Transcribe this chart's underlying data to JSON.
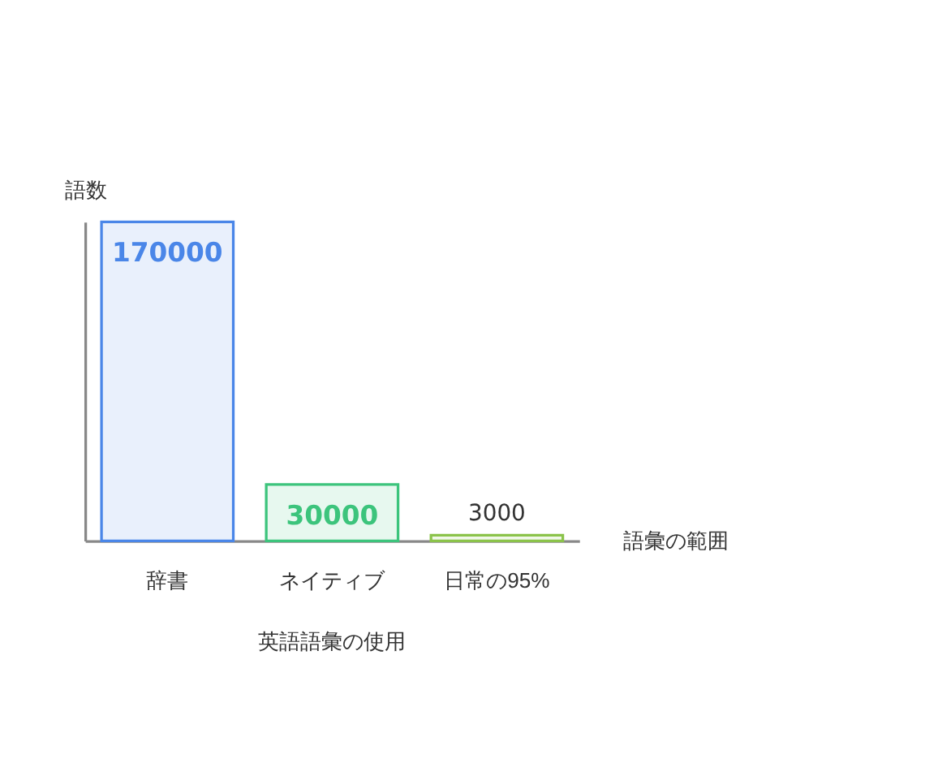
{
  "chart_data": {
    "type": "bar",
    "title": "英語語彙の使用",
    "xlabel": "語彙の範囲",
    "ylabel": "語数",
    "categories": [
      "辞書",
      "ネイティブ",
      "日常の95%"
    ],
    "values": [
      170000,
      30000,
      3000
    ],
    "colors": [
      "#4a86e8",
      "#3cc47c",
      "#8bc34a"
    ],
    "data_labels": true,
    "grid": false
  }
}
